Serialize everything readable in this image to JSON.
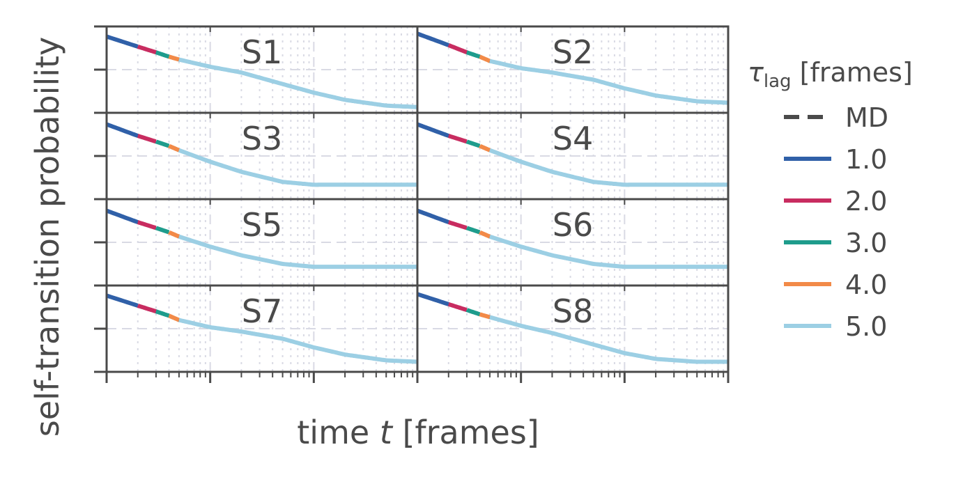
{
  "figure": {
    "ylabel": "self-transition probability",
    "xlabel_prefix": "time ",
    "xlabel_var": "t",
    "xlabel_suffix": " [frames]"
  },
  "legend": {
    "title_symbol": "τ",
    "title_subscript": "lag",
    "title_suffix": " [frames]",
    "placement": "right",
    "entries": [
      {
        "label": "MD",
        "color": "#4a4a4a",
        "dashed": true
      },
      {
        "label": "1.0",
        "color": "#3060a8",
        "dashed": false
      },
      {
        "label": "2.0",
        "color": "#c82c60",
        "dashed": false
      },
      {
        "label": "3.0",
        "color": "#1e9c8c",
        "dashed": false
      },
      {
        "label": "4.0",
        "color": "#f28a48",
        "dashed": false
      },
      {
        "label": "5.0",
        "color": "#9ccfe4",
        "dashed": false
      }
    ]
  },
  "chart_data": {
    "type": "line",
    "x_scale": "log",
    "xlim": [
      1,
      1000
    ],
    "grid": true,
    "series_colors": {
      "MD": "#4a4a4a",
      "1.0": "#3060a8",
      "2.0": "#c82c60",
      "3.0": "#1e9c8c",
      "4.0": "#f28a48",
      "5.0": "#9ccfe4"
    },
    "segment_breaks": [
      1,
      2,
      3,
      4,
      5,
      1000
    ],
    "x": [
      1,
      2,
      3,
      4,
      5,
      10,
      20,
      50,
      100,
      200,
      500,
      1000
    ],
    "panels": [
      {
        "title": "S1",
        "y": [
          0.93,
          0.86,
          0.82,
          0.79,
          0.77,
          0.72,
          0.68,
          0.6,
          0.54,
          0.49,
          0.45,
          0.44
        ]
      },
      {
        "title": "S2",
        "y": [
          0.95,
          0.87,
          0.82,
          0.79,
          0.76,
          0.71,
          0.68,
          0.63,
          0.57,
          0.52,
          0.48,
          0.47
        ]
      },
      {
        "title": "S3",
        "y": [
          0.92,
          0.84,
          0.8,
          0.77,
          0.74,
          0.66,
          0.59,
          0.52,
          0.5,
          0.5,
          0.5,
          0.5
        ]
      },
      {
        "title": "S4",
        "y": [
          0.92,
          0.84,
          0.8,
          0.77,
          0.74,
          0.66,
          0.59,
          0.52,
          0.5,
          0.5,
          0.5,
          0.5
        ]
      },
      {
        "title": "S5",
        "y": [
          0.92,
          0.84,
          0.8,
          0.77,
          0.74,
          0.67,
          0.61,
          0.55,
          0.53,
          0.53,
          0.53,
          0.53
        ]
      },
      {
        "title": "S6",
        "y": [
          0.92,
          0.84,
          0.8,
          0.77,
          0.74,
          0.67,
          0.61,
          0.55,
          0.53,
          0.53,
          0.53,
          0.53
        ]
      },
      {
        "title": "S7",
        "y": [
          0.93,
          0.86,
          0.82,
          0.79,
          0.76,
          0.71,
          0.68,
          0.63,
          0.57,
          0.52,
          0.48,
          0.47
        ]
      },
      {
        "title": "S8",
        "y": [
          0.94,
          0.87,
          0.83,
          0.8,
          0.78,
          0.72,
          0.67,
          0.59,
          0.53,
          0.49,
          0.47,
          0.47
        ]
      }
    ]
  }
}
